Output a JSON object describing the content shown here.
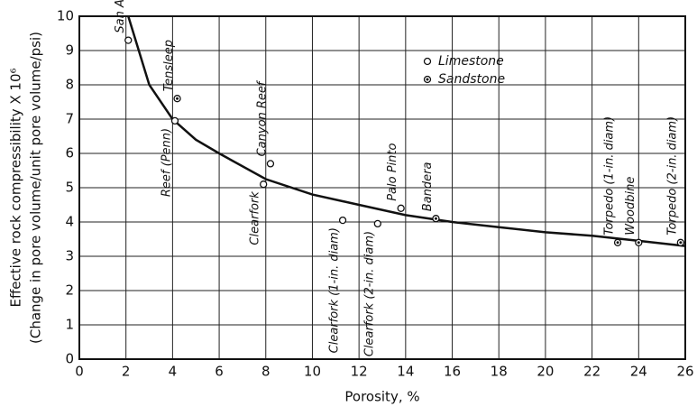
{
  "chart_data": {
    "type": "scatter",
    "xlabel": "Porosity, %",
    "ylabel": [
      "Effective rock compressibility X 10⁶",
      "(Change in pore volume/unit pore volume/psi)"
    ],
    "xlim": [
      0,
      26
    ],
    "xticks": [
      0,
      2,
      4,
      6,
      8,
      10,
      12,
      14,
      16,
      18,
      20,
      22,
      24,
      26
    ],
    "ylim": [
      0,
      10
    ],
    "yticks": [
      0,
      1,
      2,
      3,
      4,
      5,
      6,
      7,
      8,
      9,
      10
    ],
    "grid": true,
    "legend": "upper right",
    "series": [
      {
        "name": "Limestone",
        "color": "#111111",
        "labels": [
          "San Andres",
          "Reef (Penn)",
          "Canyon Reef",
          "Clearfork",
          "Clearfork (1-in. diam)",
          "Clearfork (2-in. diam)",
          "Palo Pinto"
        ],
        "x": [
          2.1,
          4.1,
          8.2,
          7.9,
          11.3,
          12.8,
          13.8
        ],
        "values": [
          9.3,
          6.95,
          5.7,
          5.1,
          4.05,
          3.95,
          4.4
        ]
      },
      {
        "name": "Sandstone",
        "color": "#111111",
        "labels": [
          "Tensleep",
          "Bandera",
          "Torpedo (1-in. diam)",
          "Woodbine",
          "Torpedo (2-in. diam)"
        ],
        "x": [
          4.2,
          15.3,
          23.1,
          24.0,
          25.8
        ],
        "values": [
          7.6,
          4.1,
          3.4,
          3.4,
          3.4
        ]
      }
    ],
    "curve": {
      "color": "#111111",
      "x": [
        2.1,
        3,
        4,
        5,
        6,
        8,
        10,
        12,
        14,
        16,
        18,
        20,
        22,
        24,
        26
      ],
      "values": [
        10,
        8,
        7,
        6.4,
        6.0,
        5.25,
        4.8,
        4.5,
        4.2,
        4.0,
        3.85,
        3.7,
        3.6,
        3.45,
        3.3
      ]
    }
  }
}
